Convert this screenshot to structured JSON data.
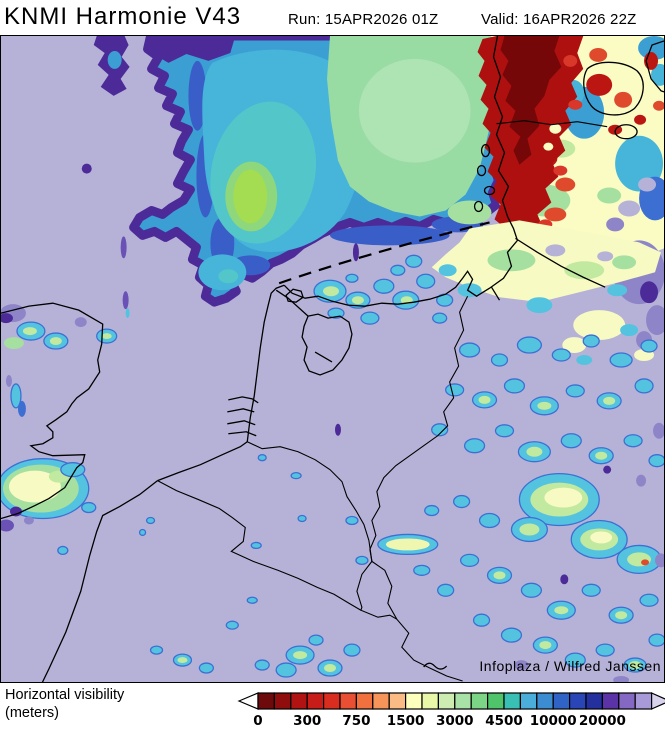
{
  "header": {
    "title": "KNMI Harmonie V43",
    "run_label": "Run:",
    "run_value": "15APR2026 01Z",
    "valid_label": "Valid:",
    "valid_value": "16APR2026 22Z"
  },
  "map": {
    "attribution": "Infoplaza / Wilfred Janssen"
  },
  "legend": {
    "title_line1": "Horizontal visibility",
    "title_line2": "(meters)",
    "ticks": [
      "0",
      "300",
      "750",
      "1500",
      "3000",
      "4500",
      "10000",
      "20000"
    ],
    "boxes_per_tick": 3,
    "left_arrow_color": "#ffffff",
    "right_arrow_color": "#d8d2ec",
    "colors": [
      "#6c0a0c",
      "#900d0d",
      "#b01312",
      "#c81c18",
      "#d92d20",
      "#e94f33",
      "#f0713e",
      "#f6945a",
      "#fabc84",
      "#fdffbc",
      "#e9f7a9",
      "#cdecb2",
      "#a9e2a6",
      "#7cd586",
      "#4fc46a",
      "#3abfb5",
      "#4badda",
      "#3c8cd2",
      "#2f63c6",
      "#2a45b5",
      "#24309e",
      "#5c33a6",
      "#8468c4",
      "#a89ad8"
    ]
  },
  "colors": {
    "background": "#b6b2d7",
    "coastline": "#000000",
    "fog_indigo": "#4c2b99",
    "fog_deep_blue": "#3a5ec8",
    "fog_blue": "#3b9fd4",
    "fog_cyan": "#47b4da",
    "fog_teal": "#52c6c8",
    "fog_green": "#98dba3",
    "fog_mint": "#aee3b4",
    "fog_lime": "#a4dc52",
    "fog_lightgreen": "#8ed77c",
    "cream": "#fafcc4",
    "pale_cream": "#f7fac2",
    "patch_green": "#a5e0a0",
    "patch_lime": "#c2e9a0",
    "red": "#bc1613",
    "dark_red": "#ae0f0f",
    "maroon": "#750708",
    "red_orange": "#e04a2c",
    "bright_red": "#d9372a",
    "purple_light": "#8d85c8",
    "purple_mid": "#6a51b5",
    "speck_cyan": "#54c3e0",
    "speck_blue": "#3d6fd3",
    "speck_cream": "#f7fac2",
    "streak_yellow": "#eef6b0"
  }
}
